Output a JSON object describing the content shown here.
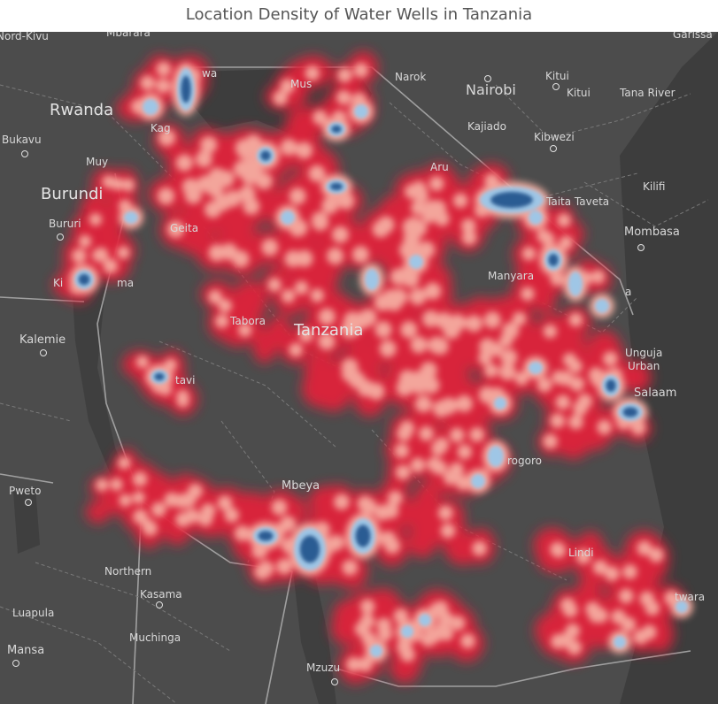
{
  "title": "Location Density of Water Wells in Tanzania",
  "colors": {
    "land": "#4c4c4c",
    "water": "#3a3a3a",
    "border": "#9a9a9a",
    "density_low": "#e0213a",
    "density_mid": "#f7b3a6",
    "density_high": "#9fc6e6",
    "density_peak": "#2a5b93"
  },
  "labels": {
    "nord_kivu": "Nord-Kivu",
    "mbarara": "Mbarara",
    "garissa": "Garissa",
    "narok": "Narok",
    "nairobi": "Nairobi",
    "kitui_town": "Kitui",
    "kitui": "Kitui",
    "tana_river": "Tana River",
    "rwanda": "Rwanda",
    "bukavu": "Bukavu",
    "kajiado": "Kajiado",
    "kibwezi": "Kibwezi",
    "burundi": "Burundi",
    "kilifi": "Kilifi",
    "bururi": "Bururi",
    "geita": "Geita",
    "taita_taveta": "Taita Taveta",
    "mombasa": "Mombasa",
    "manyara": "Manyara",
    "tanzania": "Tanzania",
    "kalemie": "Kalemie",
    "tabora": "Tabora",
    "unguja_urban": "Unguja\nUrban",
    "salaam": "Salaam",
    "katavi": "tavi",
    "morogoro": "rogoro",
    "pweto": "Pweto",
    "mbeya": "Mbeya",
    "lindi": "Lindi",
    "northern": "Northern",
    "kasama": "Kasama",
    "luapula": "Luapula",
    "muchinga": "Muchinga",
    "mansa": "Mansa",
    "mzuzu": "Mzuzu",
    "kagera": "Kag",
    "muyinga": "Muy",
    "mwanza": "wa",
    "musoma": "Mus",
    "arusha": "Aru",
    "kigoma": "Ki",
    "rukwa": "ma",
    "mtwara": "twara",
    "tanga": "a"
  }
}
